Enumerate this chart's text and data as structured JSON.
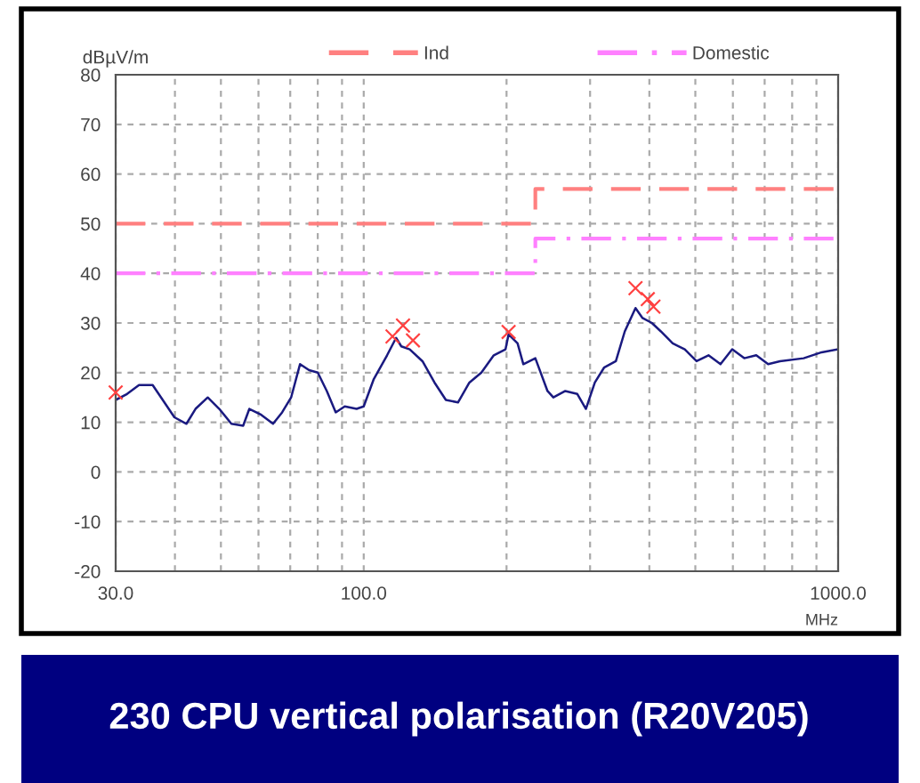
{
  "chart_data": {
    "type": "line",
    "title": "230 CPU vertical polarisation (R20V205)",
    "xlabel": "MHz",
    "ylabel": "dBµV/m",
    "log": "x",
    "grid": true,
    "legend": "top",
    "line_style": "solid",
    "marker": "none",
    "xlim": [
      30,
      1000
    ],
    "ylim": [
      -20,
      80
    ],
    "xticks": [
      {
        "value": 30,
        "label": "30.0"
      },
      {
        "value": 40,
        "label": null
      },
      {
        "value": 50,
        "label": null
      },
      {
        "value": 60,
        "label": null
      },
      {
        "value": 70,
        "label": null
      },
      {
        "value": 80,
        "label": null
      },
      {
        "value": 90,
        "label": null
      },
      {
        "value": 100,
        "label": "100.0"
      },
      {
        "value": 200,
        "label": null
      },
      {
        "value": 300,
        "label": null
      },
      {
        "value": 400,
        "label": null
      },
      {
        "value": 500,
        "label": null
      },
      {
        "value": 600,
        "label": null
      },
      {
        "value": 700,
        "label": null
      },
      {
        "value": 800,
        "label": null
      },
      {
        "value": 900,
        "label": null
      },
      {
        "value": 1000,
        "label": "1000.0"
      }
    ],
    "yticks": [
      -20,
      -10,
      0,
      10,
      20,
      30,
      40,
      50,
      60,
      70,
      80
    ],
    "series": [
      {
        "type": "line",
        "color": "#1a1a80",
        "x": [
          30,
          31.7,
          33.6,
          35.9,
          37.7,
          39.9,
          42.3,
          44.2,
          46.9,
          49.6,
          52.6,
          55.7,
          57.4,
          60.8,
          64.4,
          67.3,
          70.3,
          73.4,
          76.7,
          80,
          83.6,
          87.3,
          91.2,
          96.6,
          100,
          105,
          112,
          117,
          120,
          125,
          133,
          141,
          149,
          158,
          167,
          177,
          188,
          199,
          202,
          211,
          217,
          230,
          244,
          251,
          266,
          282,
          294,
          307,
          321,
          340,
          355,
          374,
          387,
          405,
          423,
          448,
          475,
          503,
          533,
          565,
          598,
          634,
          672,
          712,
          754,
          846,
          923,
          1000
        ],
        "values": [
          14.5,
          15.7,
          17.5,
          17.5,
          14.5,
          11,
          9.7,
          12.7,
          15,
          12.7,
          9.7,
          9.3,
          12.7,
          11.5,
          9.7,
          12,
          15,
          21.7,
          20.5,
          20,
          16.3,
          12,
          13.2,
          12.7,
          13.2,
          18.7,
          23.5,
          27,
          25.3,
          24.7,
          22.3,
          18,
          14.5,
          14,
          18,
          20,
          23.5,
          24.7,
          27.7,
          25.9,
          21.7,
          22.9,
          16.3,
          15,
          16.3,
          15.7,
          12.7,
          18,
          21,
          22.3,
          28.3,
          33,
          31,
          30,
          28.3,
          25.9,
          24.7,
          22.3,
          23.5,
          21.7,
          24.7,
          22.9,
          23.5,
          21.7,
          22.3,
          22.9,
          24.1,
          24.7
        ]
      },
      {
        "type": "step",
        "name": "Ind",
        "color": "#ff8080",
        "line_style": "dashed",
        "x": [
          30,
          230,
          1000
        ],
        "values": [
          50,
          57,
          57
        ]
      },
      {
        "type": "step",
        "name": "Domestic",
        "color": "#ff80ff",
        "line_style": "dashdot",
        "x": [
          30,
          230,
          1000
        ],
        "values": [
          40,
          47,
          47
        ]
      },
      {
        "type": "scatter",
        "color": "#ff4040",
        "marker": "cross",
        "x": [
          30,
          115,
          121,
          127,
          202,
          374,
          397,
          408
        ],
        "values": [
          16,
          27.3,
          29.5,
          26.5,
          28.2,
          37,
          34.8,
          33.3
        ]
      }
    ]
  }
}
